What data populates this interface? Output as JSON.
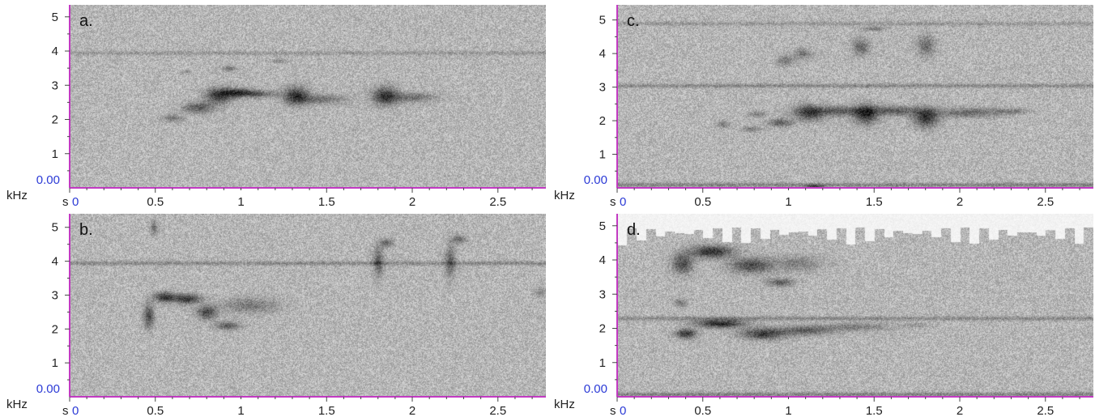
{
  "chart_data": [
    {
      "type": "heatmap",
      "panel_label": "a.",
      "x_tick_labels": [
        "0",
        "0.5",
        "1",
        "1.5",
        "2",
        "2.5"
      ],
      "y_tick_labels": [
        "1",
        "2",
        "3",
        "4",
        "5"
      ],
      "y_zero_label": "0.00",
      "y_unit_label": "kHz",
      "x_unit_label": "s",
      "xlim": [
        0,
        2.78
      ],
      "ylim": [
        0,
        5.35
      ],
      "background_color": "#b6b6b6",
      "baseline_color": "#c23ac2",
      "zero_color": "#2b3ad6",
      "noise_bands": [
        {
          "freq": 3.95,
          "strength": 0.2
        }
      ],
      "blobs": [
        {
          "t": 0.6,
          "f": 2.05,
          "w": 0.06,
          "h": 0.1,
          "d": 0.45
        },
        {
          "t": 0.75,
          "f": 2.35,
          "w": 0.09,
          "h": 0.16,
          "d": 0.6
        },
        {
          "t": 0.87,
          "f": 2.7,
          "w": 0.08,
          "h": 0.22,
          "d": 0.8
        },
        {
          "t": 0.98,
          "f": 2.8,
          "w": 0.1,
          "h": 0.12,
          "d": 0.75
        },
        {
          "t": 1.1,
          "f": 2.75,
          "w": 0.12,
          "h": 0.1,
          "d": 0.5
        },
        {
          "t": 0.93,
          "f": 3.5,
          "w": 0.04,
          "h": 0.08,
          "d": 0.45
        },
        {
          "t": 1.22,
          "f": 3.72,
          "w": 0.04,
          "h": 0.06,
          "d": 0.35
        },
        {
          "t": 1.32,
          "f": 2.7,
          "w": 0.07,
          "h": 0.26,
          "d": 0.85
        },
        {
          "t": 1.47,
          "f": 2.6,
          "w": 0.14,
          "h": 0.14,
          "d": 0.45
        },
        {
          "t": 1.84,
          "f": 2.7,
          "w": 0.07,
          "h": 0.26,
          "d": 0.85
        },
        {
          "t": 2.0,
          "f": 2.65,
          "w": 0.14,
          "h": 0.14,
          "d": 0.45
        },
        {
          "t": 0.68,
          "f": 3.4,
          "w": 0.03,
          "h": 0.05,
          "d": 0.25
        }
      ]
    },
    {
      "type": "heatmap",
      "panel_label": "c.",
      "x_tick_labels": [
        "0",
        "0.5",
        "1",
        "1.5",
        "2",
        "2.5"
      ],
      "y_tick_labels": [
        "1",
        "2",
        "3",
        "4",
        "5"
      ],
      "y_zero_label": "0.00",
      "y_unit_label": "kHz",
      "x_unit_label": "s",
      "xlim": [
        0,
        2.78
      ],
      "ylim": [
        0,
        5.45
      ],
      "background_color": "#b6b6b6",
      "baseline_color": "#c23ac2",
      "zero_color": "#2b3ad6",
      "noise_bands": [
        {
          "freq": 3.05,
          "strength": 0.3
        },
        {
          "freq": 4.9,
          "strength": 0.2
        },
        {
          "freq": 0.1,
          "strength": 0.35
        }
      ],
      "blobs": [
        {
          "t": 0.62,
          "f": 1.9,
          "w": 0.04,
          "h": 0.1,
          "d": 0.4
        },
        {
          "t": 0.78,
          "f": 1.75,
          "w": 0.05,
          "h": 0.08,
          "d": 0.45
        },
        {
          "t": 0.82,
          "f": 2.2,
          "w": 0.05,
          "h": 0.08,
          "d": 0.4
        },
        {
          "t": 0.95,
          "f": 1.95,
          "w": 0.07,
          "h": 0.12,
          "d": 0.6
        },
        {
          "t": 1.12,
          "f": 2.25,
          "w": 0.09,
          "h": 0.22,
          "d": 0.8
        },
        {
          "t": 1.3,
          "f": 2.3,
          "w": 0.14,
          "h": 0.14,
          "d": 0.6
        },
        {
          "t": 1.45,
          "f": 2.2,
          "w": 0.07,
          "h": 0.28,
          "d": 0.85
        },
        {
          "t": 1.62,
          "f": 2.3,
          "w": 0.14,
          "h": 0.14,
          "d": 0.6
        },
        {
          "t": 1.8,
          "f": 2.1,
          "w": 0.07,
          "h": 0.28,
          "d": 0.85
        },
        {
          "t": 2.05,
          "f": 2.25,
          "w": 0.2,
          "h": 0.14,
          "d": 0.5
        },
        {
          "t": 2.3,
          "f": 2.3,
          "w": 0.1,
          "h": 0.08,
          "d": 0.3
        },
        {
          "t": 0.98,
          "f": 3.8,
          "w": 0.05,
          "h": 0.15,
          "d": 0.4
        },
        {
          "t": 1.08,
          "f": 4.0,
          "w": 0.05,
          "h": 0.15,
          "d": 0.4
        },
        {
          "t": 1.42,
          "f": 4.2,
          "w": 0.05,
          "h": 0.25,
          "d": 0.5
        },
        {
          "t": 1.5,
          "f": 4.75,
          "w": 0.06,
          "h": 0.06,
          "d": 0.45
        },
        {
          "t": 1.8,
          "f": 4.25,
          "w": 0.05,
          "h": 0.3,
          "d": 0.5
        },
        {
          "t": 1.15,
          "f": 0.05,
          "w": 0.05,
          "h": 0.05,
          "d": 0.7
        }
      ]
    },
    {
      "type": "heatmap",
      "panel_label": "b.",
      "x_tick_labels": [
        "0",
        "0.5",
        "1",
        "1.5",
        "2",
        "2.5"
      ],
      "y_tick_labels": [
        "1",
        "2",
        "3",
        "4",
        "5"
      ],
      "y_zero_label": "0.00",
      "y_unit_label": "kHz",
      "x_unit_label": "s",
      "xlim": [
        0,
        2.78
      ],
      "ylim": [
        0,
        5.4
      ],
      "background_color": "#b6b6b6",
      "baseline_color": "#c23ac2",
      "zero_color": "#2b3ad6",
      "noise_bands": [
        {
          "freq": 3.95,
          "strength": 0.3
        }
      ],
      "blobs": [
        {
          "t": 0.46,
          "f": 2.4,
          "w": 0.03,
          "h": 0.35,
          "d": 0.7
        },
        {
          "t": 0.55,
          "f": 2.95,
          "w": 0.06,
          "h": 0.14,
          "d": 0.85
        },
        {
          "t": 0.68,
          "f": 2.9,
          "w": 0.08,
          "h": 0.14,
          "d": 0.85
        },
        {
          "t": 0.8,
          "f": 2.5,
          "w": 0.06,
          "h": 0.2,
          "d": 0.7
        },
        {
          "t": 0.92,
          "f": 2.1,
          "w": 0.07,
          "h": 0.12,
          "d": 0.6
        },
        {
          "t": 1.05,
          "f": 2.7,
          "w": 0.16,
          "h": 0.22,
          "d": 0.4
        },
        {
          "t": 0.49,
          "f": 5.0,
          "w": 0.02,
          "h": 0.2,
          "d": 0.45
        },
        {
          "t": 1.8,
          "f": 4.0,
          "w": 0.03,
          "h": 0.45,
          "d": 0.55
        },
        {
          "t": 1.85,
          "f": 4.55,
          "w": 0.04,
          "h": 0.12,
          "d": 0.5
        },
        {
          "t": 2.22,
          "f": 4.0,
          "w": 0.03,
          "h": 0.45,
          "d": 0.55
        },
        {
          "t": 2.27,
          "f": 4.65,
          "w": 0.04,
          "h": 0.12,
          "d": 0.5
        },
        {
          "t": 2.75,
          "f": 3.1,
          "w": 0.04,
          "h": 0.15,
          "d": 0.3
        }
      ]
    },
    {
      "type": "heatmap",
      "panel_label": "d.",
      "x_tick_labels": [
        "0",
        "0.5",
        "1",
        "1.5",
        "2",
        "2.5"
      ],
      "y_tick_labels": [
        "1",
        "2",
        "3",
        "4",
        "5"
      ],
      "y_zero_label": "0.00",
      "y_unit_label": "kHz",
      "x_unit_label": "s",
      "xlim": [
        0,
        2.78
      ],
      "ylim": [
        0,
        5.35
      ],
      "background_color": "#b6b6b6",
      "baseline_color": "#c23ac2",
      "zero_color": "#2b3ad6",
      "noise_bands": [
        {
          "freq": 2.3,
          "strength": 0.3
        },
        {
          "freq": 0.08,
          "strength": 0.35
        }
      ],
      "blobs": [
        {
          "t": 0.38,
          "f": 3.9,
          "w": 0.06,
          "h": 0.3,
          "d": 0.7
        },
        {
          "t": 0.55,
          "f": 4.25,
          "w": 0.12,
          "h": 0.18,
          "d": 0.9
        },
        {
          "t": 0.78,
          "f": 3.85,
          "w": 0.12,
          "h": 0.22,
          "d": 0.7
        },
        {
          "t": 0.95,
          "f": 3.35,
          "w": 0.08,
          "h": 0.12,
          "d": 0.55
        },
        {
          "t": 1.05,
          "f": 3.9,
          "w": 0.14,
          "h": 0.22,
          "d": 0.35
        },
        {
          "t": 0.37,
          "f": 2.75,
          "w": 0.04,
          "h": 0.12,
          "d": 0.4
        },
        {
          "t": 0.4,
          "f": 1.85,
          "w": 0.06,
          "h": 0.14,
          "d": 0.85
        },
        {
          "t": 0.6,
          "f": 2.15,
          "w": 0.14,
          "h": 0.12,
          "d": 0.95
        },
        {
          "t": 0.85,
          "f": 1.85,
          "w": 0.13,
          "h": 0.16,
          "d": 0.8
        },
        {
          "t": 1.1,
          "f": 1.95,
          "w": 0.16,
          "h": 0.14,
          "d": 0.55
        },
        {
          "t": 1.4,
          "f": 2.05,
          "w": 0.2,
          "h": 0.12,
          "d": 0.35
        },
        {
          "t": 1.75,
          "f": 2.1,
          "w": 0.08,
          "h": 0.06,
          "d": 0.2
        }
      ],
      "white_ceiling": true
    }
  ]
}
